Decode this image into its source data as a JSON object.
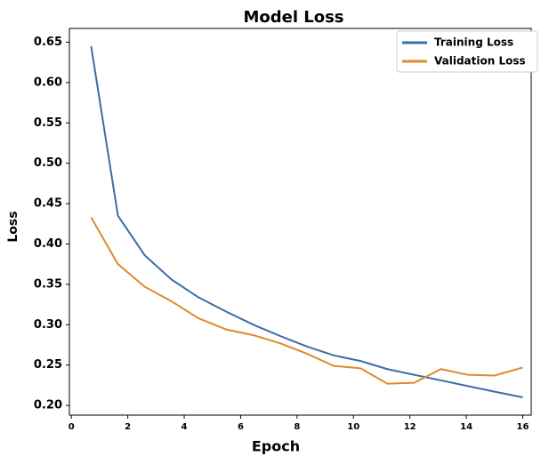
{
  "chart_data": {
    "type": "line",
    "title": "Model Loss",
    "xlabel": "Epoch",
    "ylabel": "Loss",
    "x": [
      0.7,
      1.65,
      2.6,
      3.55,
      4.5,
      5.5,
      6.45,
      7.4,
      8.35,
      9.3,
      10.25,
      11.2,
      12.15,
      13.1,
      14.05,
      15.0,
      16.0
    ],
    "series": [
      {
        "name": "Training Loss",
        "color": "#3a6ea5",
        "values": [
          0.645,
          0.435,
          0.386,
          0.356,
          0.334,
          0.316,
          0.3,
          0.286,
          0.273,
          0.262,
          0.255,
          0.245,
          0.238,
          0.231,
          0.224,
          0.217,
          0.21
        ]
      },
      {
        "name": "Validation Loss",
        "color": "#e08a2c",
        "values": [
          0.433,
          0.375,
          0.347,
          0.329,
          0.308,
          0.294,
          0.287,
          0.277,
          0.264,
          0.249,
          0.246,
          0.227,
          0.228,
          0.245,
          0.238,
          0.237,
          0.247
        ]
      }
    ],
    "xlim": [
      -0.07,
      16.3
    ],
    "ylim": [
      0.188,
      0.667
    ],
    "xticks": [
      0,
      2,
      4,
      6,
      8,
      10,
      12,
      14,
      16
    ],
    "yticks": [
      {
        "value": 0.2,
        "label": "0.20"
      },
      0.25,
      {
        "value": 0.3,
        "label": "0.30"
      },
      0.35,
      {
        "value": 0.4,
        "label": "0.40"
      },
      0.45,
      {
        "value": 0.5,
        "label": "0.50"
      },
      0.55,
      {
        "value": 0.6,
        "label": "0.60"
      },
      0.65
    ],
    "legend": "upper right",
    "grid": false
  }
}
